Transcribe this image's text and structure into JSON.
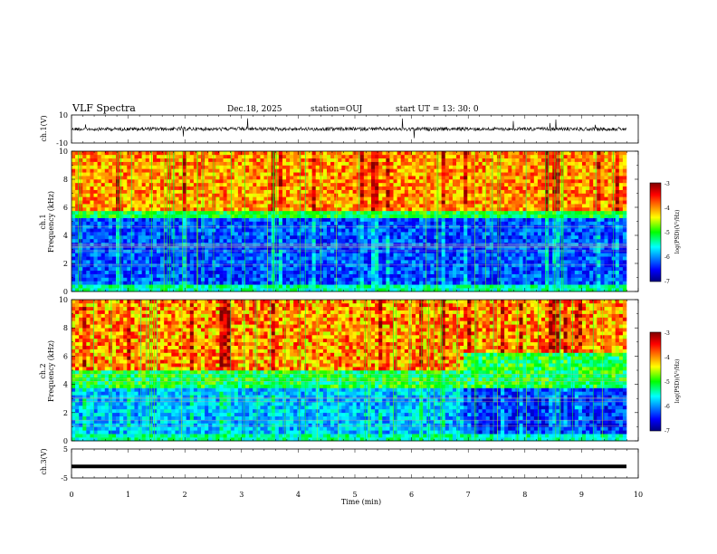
{
  "header": {
    "title": "VLF Spectra",
    "date": "Dec.18, 2025",
    "station": "station=OUJ",
    "start_ut": "start  UT =  13: 30: 0"
  },
  "chart_data": [
    {
      "type": "line",
      "name": "ch1-waveform",
      "ylabel": "ch.1(V)",
      "ylim": [
        -10,
        10
      ],
      "y_ticks": [
        "10",
        "-10"
      ],
      "xlim": [
        0,
        10
      ]
    },
    {
      "type": "heatmap",
      "name": "ch1-spectrogram",
      "ylabel": "ch.1\nFrequency (kHz)",
      "ylabel_lines": [
        "ch.1",
        "Frequency (kHz)"
      ],
      "ylim": [
        0,
        10
      ],
      "y_ticks": [
        "0",
        "2",
        "4",
        "6",
        "8",
        "10"
      ],
      "xlim": [
        0,
        9.83
      ],
      "colorbar": {
        "label": "log(PSD)(V²/Hz)",
        "range": [
          -7,
          -3
        ],
        "ticks": [
          "-3",
          "-4",
          "-5",
          "-6",
          "-7"
        ]
      }
    },
    {
      "type": "heatmap",
      "name": "ch2-spectrogram",
      "ylabel_lines": [
        "ch.2",
        "Frequency (kHz)"
      ],
      "ylim": [
        0,
        10
      ],
      "y_ticks": [
        "0",
        "2",
        "4",
        "6",
        "8",
        "10"
      ],
      "xlim": [
        0,
        9.83
      ],
      "colorbar": {
        "label": "log(PSD)(V²/Hz)",
        "range": [
          -7,
          -3
        ],
        "ticks": [
          "-3",
          "-4",
          "-5",
          "-6",
          "-7"
        ]
      }
    },
    {
      "type": "line",
      "name": "ch3-waveform",
      "ylabel": "ch.3(V)",
      "ylim": [
        -5,
        5
      ],
      "y_ticks": [
        "5",
        "-5"
      ],
      "value": -1.0,
      "xlim": [
        0,
        10
      ]
    }
  ],
  "x_axis": {
    "label": "Time (min)",
    "ticks": [
      "0",
      "1",
      "2",
      "3",
      "4",
      "5",
      "6",
      "7",
      "8",
      "9",
      "10"
    ]
  },
  "colors": {
    "colormap": [
      "#00007f",
      "#0000ff",
      "#00ffff",
      "#00ff00",
      "#ffff00",
      "#ff0000",
      "#7f0000"
    ]
  }
}
